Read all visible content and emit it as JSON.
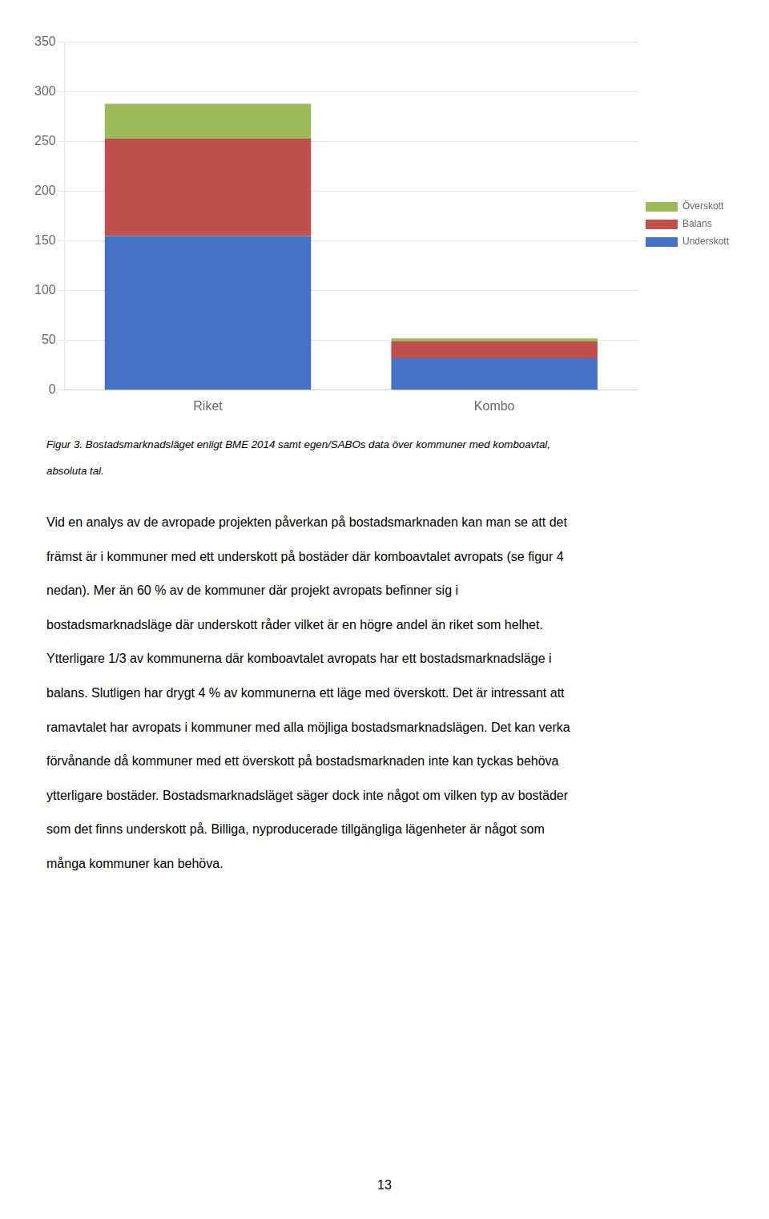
{
  "chart_data": {
    "type": "bar",
    "stacked": true,
    "categories": [
      "Riket",
      "Kombo"
    ],
    "series": [
      {
        "name": "Underskott",
        "color": "#4472C4",
        "values": [
          155,
          32
        ]
      },
      {
        "name": "Balans",
        "color": "#C0504D",
        "values": [
          98,
          17
        ]
      },
      {
        "name": "Överskott",
        "color": "#9BBB59",
        "values": [
          35,
          3
        ]
      }
    ],
    "ylim": [
      0,
      350
    ],
    "yticks": [
      0,
      50,
      100,
      150,
      200,
      250,
      300,
      350
    ],
    "grid": true,
    "legend": "right"
  },
  "caption": [
    "Figur 3. Bostadsmarknadsläget enligt BME 2014 samt egen/SABOs data över kommuner med komboavtal,",
    "absoluta tal."
  ],
  "body_text": [
    "Vid en analys av de avropade projekten påverkan på bostadsmarknaden kan man se att det",
    "främst är i kommuner med ett underskott på bostäder där komboavtalet avropats (se figur 4",
    "nedan). Mer än 60 % av de kommuner där projekt avropats befinner sig i",
    "bostadsmarknadsläge där underskott råder vilket är en högre andel än riket som helhet.",
    "Ytterligare 1/3 av kommunerna där komboavtalet avropats har ett bostadsmarknadsläge i",
    "balans. Slutligen har drygt 4 % av kommunerna ett läge med överskott. Det är intressant att",
    "ramavtalet har avropats i kommuner med alla möjliga bostadsmarknadslägen. Det kan verka",
    "förvånande då kommuner med ett överskott på bostadsmarknaden inte kan tyckas behöva",
    "ytterligare bostäder. Bostadsmarknadsläget säger dock inte något om vilken typ av bostäder",
    "som det finns underskott på. Billiga, nyproducerade tillgängliga lägenheter är något som",
    "många kommuner kan behöva."
  ],
  "page_number": "13"
}
